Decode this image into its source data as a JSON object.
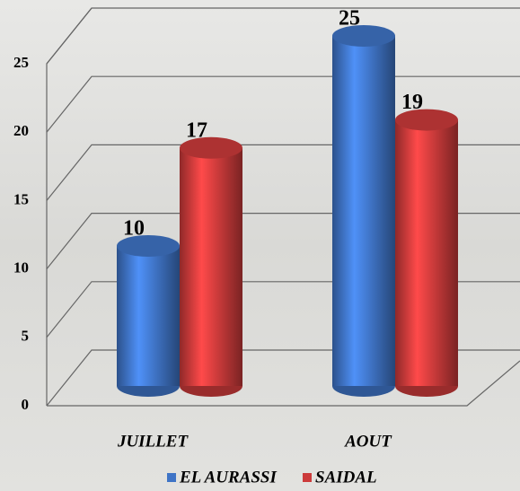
{
  "chart_data": {
    "type": "bar3d",
    "categories": [
      "JUILLET",
      "AOUT"
    ],
    "series": [
      {
        "name": "EL AURASSI",
        "color": "#3f74c6",
        "values": [
          10,
          25
        ]
      },
      {
        "name": "SAIDAL",
        "color": "#cc3b3b",
        "values": [
          17,
          19
        ]
      }
    ],
    "ylim": [
      0,
      25
    ],
    "yticks": [
      0,
      5,
      10,
      15,
      20,
      25
    ],
    "grid": true,
    "legend": "bottom"
  }
}
